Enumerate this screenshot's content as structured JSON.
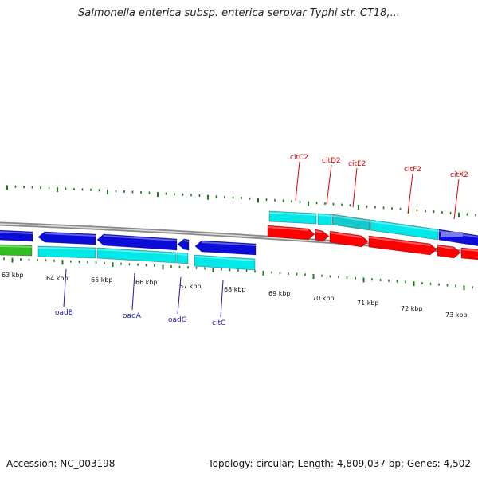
{
  "title": "Salmonella enterica subsp. enterica serovar Typhi str. CT18,...",
  "footer": {
    "accession": "Accession: NC_003198",
    "stats": "Topology: circular; Length: 4,809,037 bp; Genes: 4,502"
  },
  "colors": {
    "cds_blue": "#0c0cd8",
    "cds_cyan": "#00e8e8",
    "cds_red": "#ff0000",
    "cds_green": "#2fbf1f",
    "tick_green": "#1e7a1e",
    "backbone": "#8a8a8a",
    "label_red": "#e00000",
    "label_blue": "#1a1aa8"
  },
  "scale_labels": [
    "63 kbp",
    "64 kbp",
    "65 kbp",
    "66 kbp",
    "67 kbp",
    "68 kbp",
    "69 kbp",
    "70 kbp",
    "71 kbp",
    "72 kbp",
    "73 kbp"
  ],
  "labels_top": [
    "citC2",
    "citD2",
    "citE2",
    "citF2",
    "citX2"
  ],
  "labels_bottom": [
    "oadB",
    "oadA",
    "oadG",
    "citC"
  ]
}
